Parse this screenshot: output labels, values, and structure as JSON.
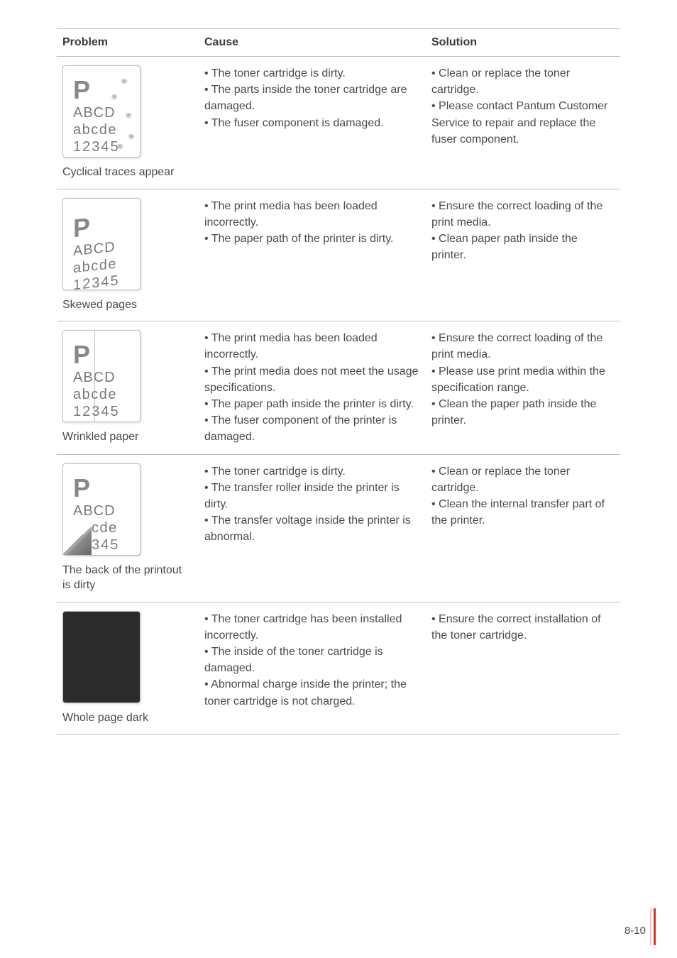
{
  "headers": {
    "problem": "Problem",
    "cause": "Cause",
    "solution": "Solution"
  },
  "rows": [
    {
      "caption": "Cyclical traces appear",
      "cause": "• The toner cartridge is dirty.\n• The parts inside the toner cartridge are damaged.\n• The fuser component is damaged.",
      "solution": "• Clean or replace the toner cartridge.\n• Please contact Pantum Customer Service to repair and replace the fuser component."
    },
    {
      "caption": "Skewed pages",
      "cause": "• The print media has been loaded incorrectly.\n• The paper path of the printer is dirty.",
      "solution": "• Ensure the correct loading of the print media.\n• Clean paper path inside the printer."
    },
    {
      "caption": "Wrinkled paper",
      "cause": "• The print media has been loaded incorrectly.\n• The print media does not meet the usage specifications.\n• The paper path inside the printer is dirty.\n• The fuser component of the printer is damaged.",
      "solution": "• Ensure the correct loading of the print media.\n• Please use print media within the specification range.\n• Clean the paper path inside the printer."
    },
    {
      "caption": "The back of the printout is dirty",
      "cause": "• The toner cartridge is dirty.\n• The transfer roller inside the printer is dirty.\n• The transfer voltage inside the printer is abnormal.",
      "solution": "• Clean or replace the toner cartridge.\n• Clean the internal transfer part of the printer."
    },
    {
      "caption": "Whole page dark",
      "cause": "• The toner cartridge has been installed incorrectly.\n• The inside of the toner cartridge is damaged.\n• Abnormal charge inside the printer; the toner cartridge is not charged.",
      "solution": "• Ensure the correct installation of the toner cartridge."
    }
  ],
  "sample": {
    "p": "P",
    "l1": "ABCD",
    "l2": "abcde",
    "l3": "12345"
  },
  "sample_dirty": {
    "l2": "cde",
    "l3": "345"
  },
  "pagenum": "8-10",
  "colors": {
    "rule": "#bdbdbd",
    "text": "#4a4a4a",
    "accent": "#d9302c"
  }
}
